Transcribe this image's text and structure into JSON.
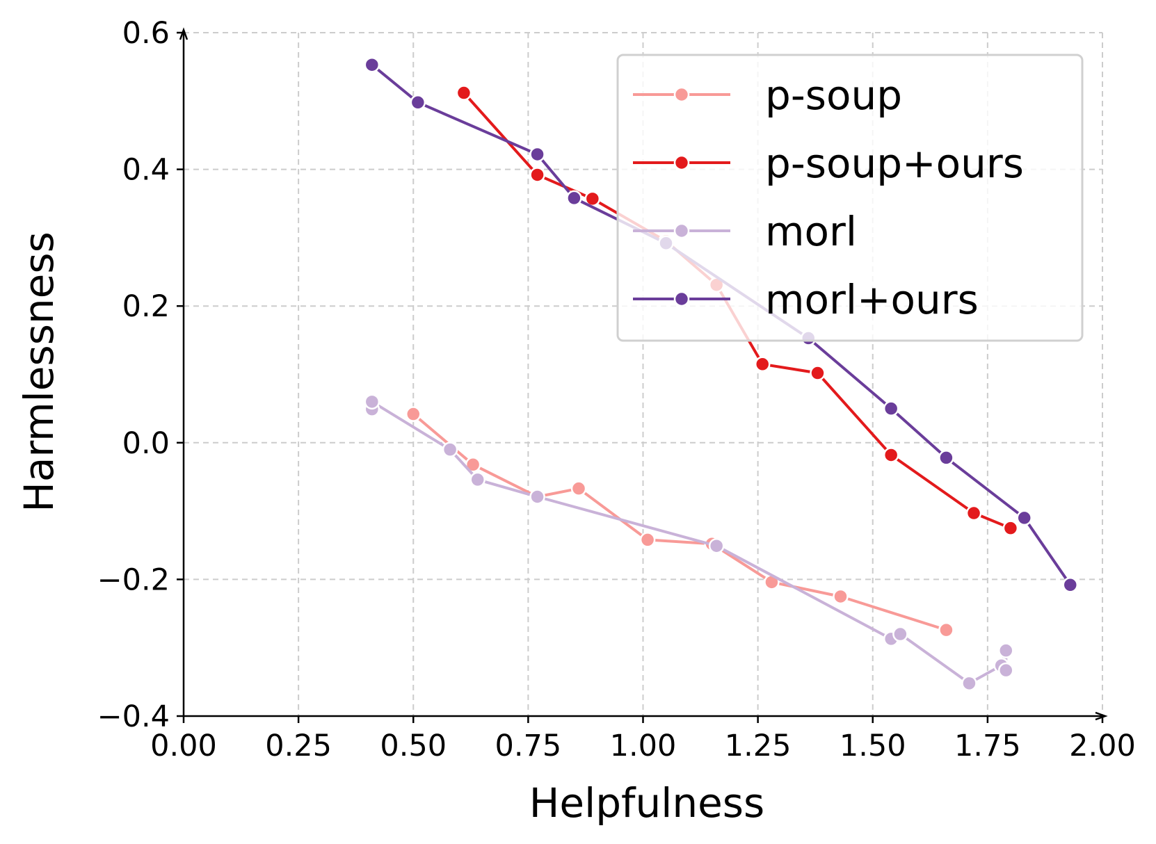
{
  "chart_data": {
    "type": "line",
    "xlabel": "Helpfulness",
    "ylabel": "Harmlessness",
    "xlim": [
      0.0,
      2.0
    ],
    "ylim": [
      -0.4,
      0.6
    ],
    "xticks": [
      "0.00",
      "0.25",
      "0.50",
      "0.75",
      "1.00",
      "1.25",
      "1.50",
      "1.75",
      "2.00"
    ],
    "yticks": [
      "−0.4",
      "−0.2",
      "0.0",
      "0.2",
      "0.4",
      "0.6"
    ],
    "xtick_values": [
      0,
      0.25,
      0.5,
      0.75,
      1.0,
      1.25,
      1.5,
      1.75,
      2.0
    ],
    "ytick_values": [
      -0.4,
      -0.2,
      0.0,
      0.2,
      0.4,
      0.6
    ],
    "grid": true,
    "legend_position": "top-right",
    "series": [
      {
        "name": "p-soup",
        "color": "#f89a97",
        "points": [
          [
            0.5,
            0.042
          ],
          [
            0.63,
            -0.032
          ],
          [
            0.77,
            -0.079
          ],
          [
            0.86,
            -0.067
          ],
          [
            1.01,
            -0.142
          ],
          [
            1.15,
            -0.148
          ],
          [
            1.28,
            -0.204
          ],
          [
            1.43,
            -0.225
          ],
          [
            1.66,
            -0.274
          ]
        ]
      },
      {
        "name": "p-soup+ours",
        "color": "#e31a1c",
        "points": [
          [
            0.61,
            0.512
          ],
          [
            0.77,
            0.392
          ],
          [
            0.89,
            0.357
          ],
          [
            1.05,
            0.295
          ],
          [
            1.16,
            0.231
          ],
          [
            1.26,
            0.115
          ],
          [
            1.38,
            0.102
          ],
          [
            1.54,
            -0.018
          ],
          [
            1.72,
            -0.103
          ],
          [
            1.8,
            -0.125
          ]
        ]
      },
      {
        "name": "morl",
        "color": "#c9b2d8",
        "points": [
          [
            0.41,
            0.049
          ],
          [
            0.41,
            0.06
          ],
          [
            0.58,
            -0.01
          ],
          [
            0.64,
            -0.054
          ],
          [
            0.77,
            -0.079
          ],
          [
            1.16,
            -0.151
          ],
          [
            1.54,
            -0.287
          ],
          [
            1.56,
            -0.28
          ],
          [
            1.71,
            -0.352
          ],
          [
            1.78,
            -0.326
          ],
          [
            1.79,
            -0.304
          ],
          [
            1.79,
            -0.333
          ]
        ]
      },
      {
        "name": "morl+ours",
        "color": "#6a3d9a",
        "points": [
          [
            0.41,
            0.553
          ],
          [
            0.51,
            0.498
          ],
          [
            0.77,
            0.422
          ],
          [
            0.85,
            0.358
          ],
          [
            1.05,
            0.292
          ],
          [
            1.36,
            0.153
          ],
          [
            1.54,
            0.05
          ],
          [
            1.66,
            -0.022
          ],
          [
            1.83,
            -0.11
          ],
          [
            1.93,
            -0.208
          ]
        ]
      }
    ]
  }
}
